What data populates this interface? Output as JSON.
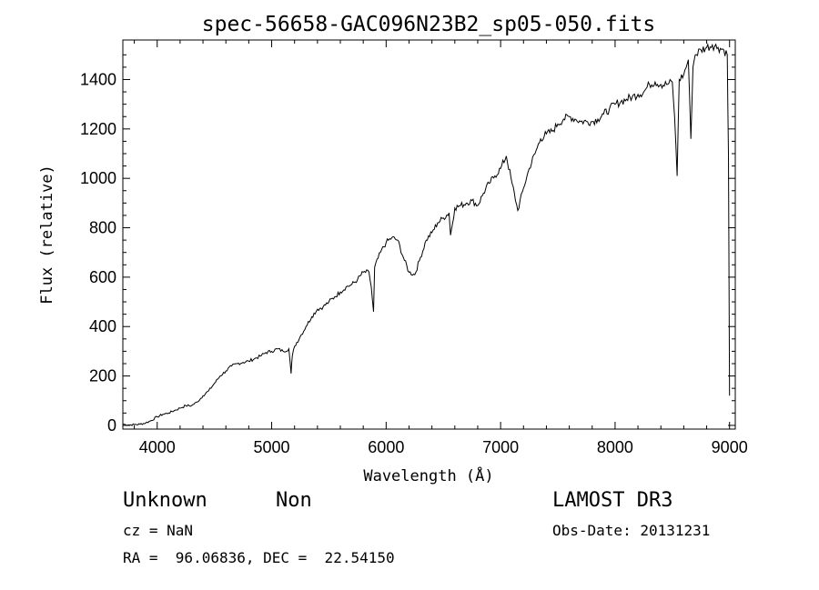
{
  "chart_data": {
    "type": "line",
    "title": "spec-56658-GAC096N23B2_sp05-050.fits",
    "xlabel": "Wavelength (Å)",
    "ylabel": "Flux (relative)",
    "xlim": [
      3700,
      9050
    ],
    "ylim": [
      -15,
      1560
    ],
    "xticks": [
      4000,
      5000,
      6000,
      7000,
      8000,
      9000
    ],
    "yticks": [
      0,
      200,
      400,
      600,
      800,
      1000,
      1200,
      1400
    ],
    "grid": false,
    "line_color": "#000000",
    "series": [
      {
        "x": [
          3700,
          3750,
          3800,
          3850,
          3900,
          3950,
          4000,
          4050,
          4100,
          4150,
          4200,
          4250,
          4300,
          4350,
          4400,
          4450,
          4500,
          4550,
          4600,
          4650,
          4700,
          4750,
          4800,
          4850,
          4900,
          4950,
          5000,
          5050,
          5100,
          5150,
          5170,
          5180,
          5200,
          5250,
          5300,
          5350,
          5400,
          5450,
          5500,
          5550,
          5600,
          5650,
          5700,
          5750,
          5800,
          5850,
          5870,
          5890,
          5900,
          5950,
          6000,
          6050,
          6100,
          6150,
          6200,
          6250,
          6300,
          6350,
          6400,
          6450,
          6500,
          6550,
          6563,
          6600,
          6650,
          6700,
          6750,
          6800,
          6850,
          6900,
          6950,
          7000,
          7050,
          7100,
          7150,
          7200,
          7250,
          7300,
          7350,
          7400,
          7450,
          7500,
          7550,
          7600,
          7650,
          7700,
          7750,
          7800,
          7850,
          7900,
          7950,
          8000,
          8050,
          8100,
          8150,
          8200,
          8250,
          8300,
          8350,
          8400,
          8450,
          8500,
          8520,
          8542,
          8560,
          8600,
          8640,
          8662,
          8680,
          8700,
          8750,
          8800,
          8850,
          8900,
          8950,
          8980,
          8990,
          9000
        ],
        "y": [
          5,
          2,
          3,
          5,
          10,
          20,
          35,
          45,
          50,
          60,
          70,
          80,
          80,
          95,
          120,
          140,
          170,
          200,
          220,
          240,
          250,
          255,
          260,
          270,
          280,
          295,
          300,
          310,
          300,
          310,
          210,
          280,
          320,
          360,
          400,
          440,
          470,
          480,
          500,
          520,
          540,
          560,
          570,
          590,
          620,
          620,
          560,
          460,
          640,
          700,
          740,
          760,
          750,
          680,
          620,
          610,
          680,
          750,
          780,
          820,
          840,
          860,
          770,
          880,
          890,
          900,
          910,
          890,
          940,
          980,
          1010,
          1040,
          1090,
          980,
          870,
          960,
          1040,
          1100,
          1160,
          1180,
          1190,
          1220,
          1240,
          1250,
          1240,
          1230,
          1230,
          1230,
          1240,
          1260,
          1280,
          1300,
          1310,
          1320,
          1330,
          1340,
          1350,
          1380,
          1390,
          1380,
          1380,
          1390,
          1250,
          1010,
          1400,
          1420,
          1480,
          1160,
          1450,
          1500,
          1520,
          1530,
          1540,
          1530,
          1520,
          1500,
          1100,
          120
        ]
      }
    ]
  },
  "footer": {
    "object_class": "Unknown",
    "subclass": "Non",
    "survey": "LAMOST DR3",
    "cz": "cz = NaN",
    "obs_date": "Obs-Date: 20131231",
    "coords": "RA =  96.06836, DEC =  22.54150"
  }
}
